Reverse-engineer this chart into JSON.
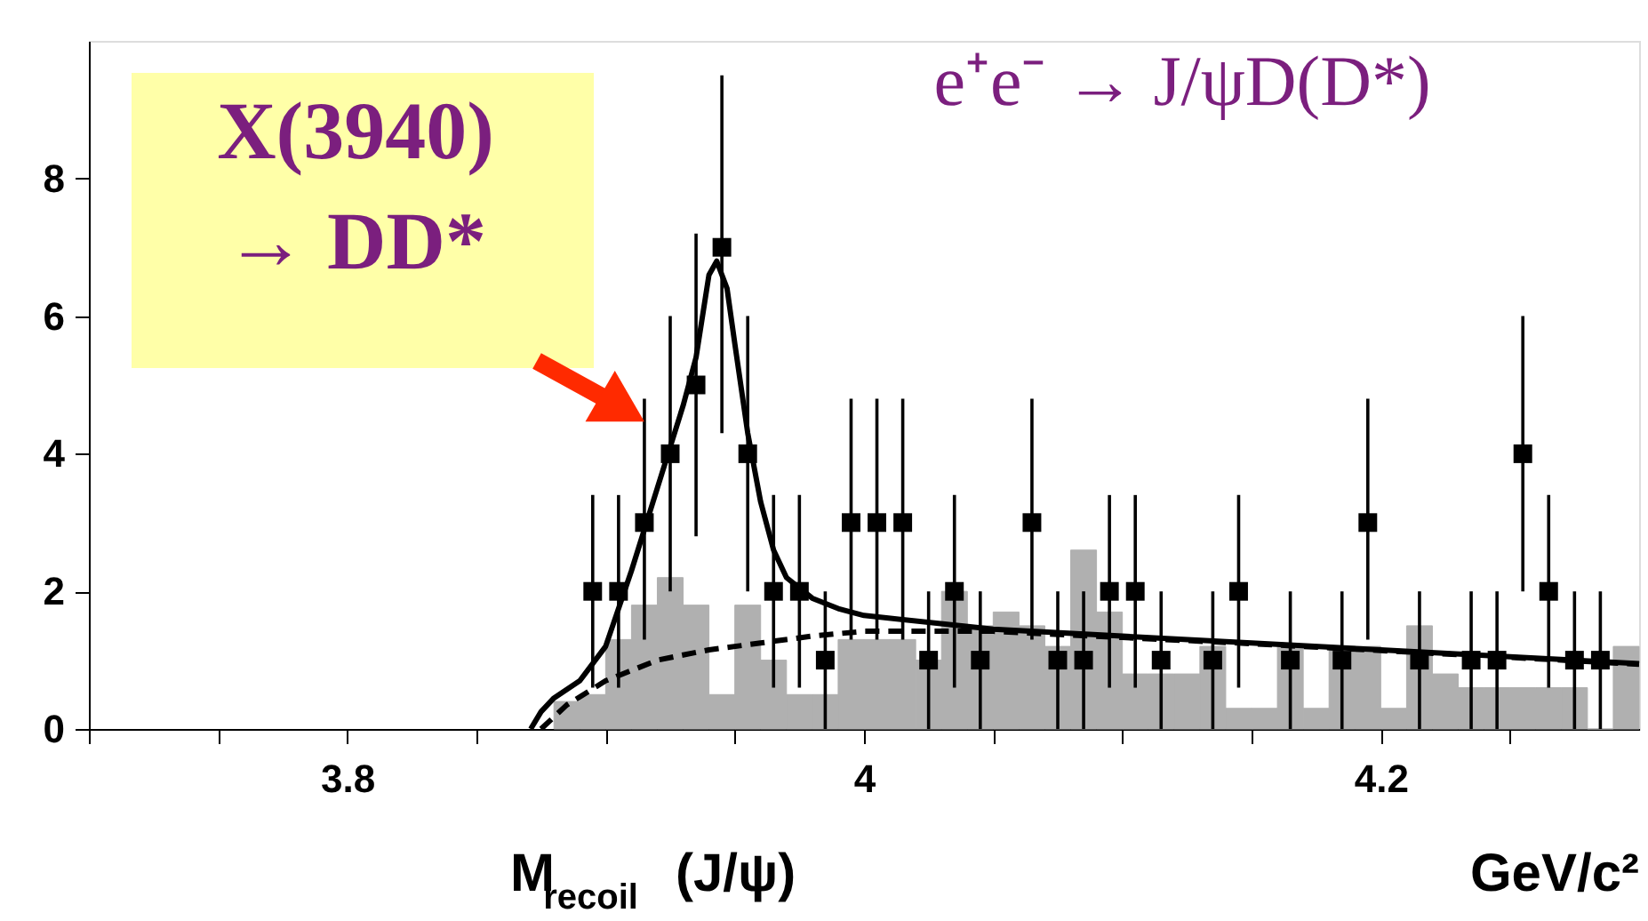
{
  "chart_data": {
    "type": "scatter",
    "xlabel": "M$_{recoil}$(J/ψ)",
    "annotations": [
      "X(3940)\n→ DD*",
      "e⁺e⁻ → J/ψD(D*)",
      "GeV/c²"
    ],
    "xlim": [
      3.7,
      4.3
    ],
    "ylim": [
      0,
      10
    ],
    "xticks": [
      {
        "value": 3.7,
        "label": null
      },
      {
        "value": 3.75,
        "label": null
      },
      3.8,
      {
        "value": 3.85,
        "label": null
      },
      {
        "value": 3.9,
        "label": null
      },
      {
        "value": 3.95,
        "label": null
      },
      4,
      {
        "value": 4.05,
        "label": null
      },
      {
        "value": 4.1,
        "label": null
      },
      {
        "value": 4.15,
        "label": null
      },
      4.2,
      {
        "value": 4.25,
        "label": null
      }
    ],
    "yticks": [
      0,
      2,
      4,
      6,
      8
    ],
    "grid": false,
    "series": [
      {
        "type": "histogram",
        "color": "#b0b0b0",
        "bins": [
          3.88,
          3.89,
          3.9,
          3.91,
          3.92,
          3.93,
          3.94,
          3.95,
          3.96,
          3.97,
          3.98,
          3.99,
          4.0,
          4.01,
          4.02,
          4.03,
          4.04,
          4.05,
          4.06,
          4.07,
          4.08,
          4.09,
          4.1,
          4.11,
          4.12,
          4.13,
          4.14,
          4.15,
          4.16,
          4.17,
          4.18,
          4.19,
          4.2,
          4.21,
          4.22,
          4.23,
          4.24,
          4.25,
          4.26,
          4.27,
          4.28,
          4.29,
          4.3
        ],
        "values": [
          0.4,
          0.5,
          1.3,
          1.8,
          2.2,
          1.8,
          0.5,
          1.8,
          1.0,
          0.5,
          0.5,
          1.3,
          1.3,
          1.3,
          1.0,
          2.0,
          1.5,
          1.7,
          1.5,
          1.2,
          2.6,
          1.7,
          0.8,
          0.8,
          0.8,
          1.2,
          0.3,
          0.3,
          1.2,
          0.3,
          1.2,
          1.2,
          0.3,
          1.5,
          0.8,
          0.6,
          0.6,
          0.6,
          0.6,
          0.6,
          0,
          1.2
        ]
      },
      {
        "type": "line",
        "color": "#000000",
        "line_style": "dashed",
        "x": [
          3.875,
          3.885,
          3.9,
          3.92,
          3.94,
          3.96,
          3.98,
          4.0,
          4.05,
          4.1,
          4.15,
          4.2,
          4.25,
          4.3
        ],
        "values": [
          0,
          0.35,
          0.7,
          1.0,
          1.15,
          1.25,
          1.35,
          1.42,
          1.42,
          1.33,
          1.24,
          1.14,
          1.04,
          0.94
        ]
      },
      {
        "type": "line",
        "color": "#000000",
        "line_style": "solid",
        "x": [
          3.871,
          3.875,
          3.88,
          3.89,
          3.9,
          3.91,
          3.92,
          3.93,
          3.935,
          3.94,
          3.943,
          3.947,
          3.95,
          3.955,
          3.96,
          3.965,
          3.97,
          3.98,
          3.99,
          4.0,
          4.05,
          4.1,
          4.15,
          4.2,
          4.25,
          4.3
        ],
        "values": [
          0,
          0.25,
          0.45,
          0.7,
          1.2,
          2.3,
          3.5,
          4.7,
          5.4,
          6.6,
          6.8,
          6.4,
          5.6,
          4.3,
          3.3,
          2.6,
          2.2,
          1.9,
          1.75,
          1.65,
          1.45,
          1.35,
          1.25,
          1.15,
          1.05,
          0.95
        ]
      },
      {
        "color": "#000000",
        "marker": "square",
        "x": [
          3.895,
          3.905,
          3.915,
          3.925,
          3.935,
          3.945,
          3.955,
          3.965,
          3.975,
          3.985,
          3.995,
          4.005,
          4.015,
          4.025,
          4.035,
          4.045,
          4.065,
          4.075,
          4.085,
          4.095,
          4.105,
          4.115,
          4.135,
          4.145,
          4.165,
          4.185,
          4.195,
          4.215,
          4.235,
          4.245,
          4.255,
          4.265,
          4.275,
          4.285
        ],
        "values": [
          2,
          2,
          3,
          4,
          5,
          7,
          4,
          2,
          2,
          1,
          3,
          3,
          3,
          1,
          2,
          1,
          3,
          1,
          1,
          2,
          2,
          1,
          1,
          2,
          1,
          1,
          3,
          1,
          1,
          1,
          4,
          2,
          1,
          1
        ],
        "errors": [
          [
            0.6,
            3.4
          ],
          [
            0.6,
            3.4
          ],
          [
            1.3,
            4.8
          ],
          [
            2,
            6
          ],
          [
            2.8,
            7.2
          ],
          [
            4.3,
            9.5
          ],
          [
            2,
            6
          ],
          [
            0.6,
            3.4
          ],
          [
            0.6,
            3.4
          ],
          [
            0,
            2
          ],
          [
            1.3,
            4.8
          ],
          [
            1.3,
            4.8
          ],
          [
            1.3,
            4.8
          ],
          [
            0,
            2
          ],
          [
            0.6,
            3.4
          ],
          [
            0,
            2
          ],
          [
            1.3,
            4.8
          ],
          [
            0,
            2
          ],
          [
            0,
            2
          ],
          [
            0.6,
            3.4
          ],
          [
            0.6,
            3.4
          ],
          [
            0,
            2
          ],
          [
            0,
            2
          ],
          [
            0.6,
            3.4
          ],
          [
            0,
            2
          ],
          [
            0,
            2
          ],
          [
            1.3,
            4.8
          ],
          [
            0,
            2
          ],
          [
            0,
            2
          ],
          [
            0,
            2
          ],
          [
            2,
            6
          ],
          [
            0.6,
            3.4
          ],
          [
            0,
            2
          ],
          [
            0,
            2
          ]
        ]
      }
    ]
  }
}
